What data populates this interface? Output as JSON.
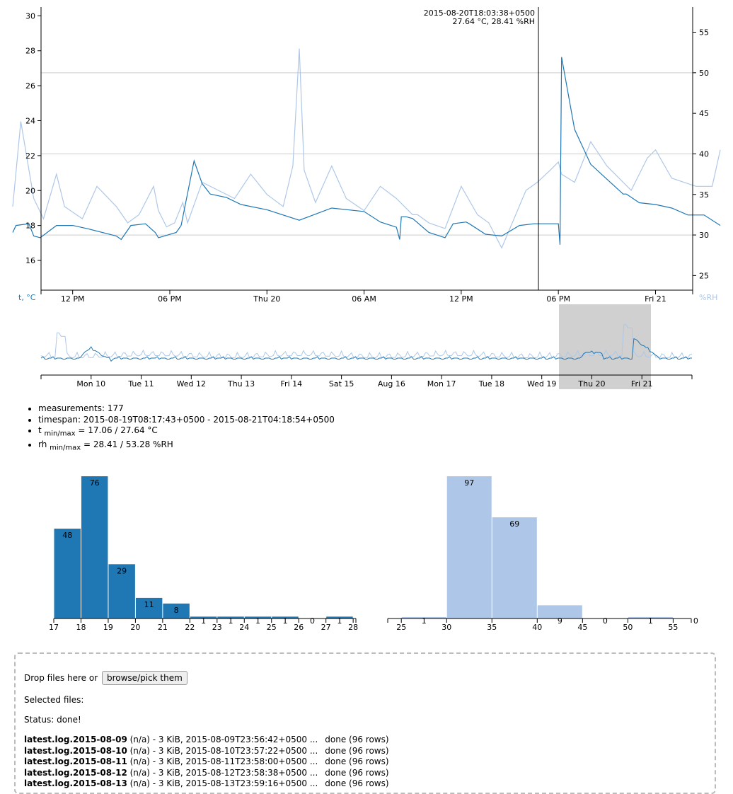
{
  "main_chart": {
    "tooltip": {
      "time": "2015-08-20T18:03:38+0500",
      "values": "27.64 °C, 28.41 %RH"
    },
    "y_left_label": "t, °C",
    "y_right_label": "%RH",
    "y_left_ticks": [
      "16",
      "18",
      "20",
      "22",
      "24",
      "26",
      "28",
      "30"
    ],
    "y_right_ticks": [
      "25",
      "30",
      "35",
      "40",
      "45",
      "50",
      "55"
    ],
    "x_ticks": [
      "12 PM",
      "06 PM",
      "Thu 20",
      "06 AM",
      "12 PM",
      "06 PM",
      "Fri 21"
    ]
  },
  "brush_chart": {
    "x_ticks": [
      "Mon 10",
      "Tue 11",
      "Wed 12",
      "Thu 13",
      "Fri 14",
      "Sat 15",
      "Aug 16",
      "Mon 17",
      "Tue 18",
      "Wed 19",
      "Thu 20",
      "Fri 21"
    ]
  },
  "stats": {
    "measurements": "measurements: 177",
    "timespan": "timespan: 2015-08-19T08:17:43+0500 - 2015-08-21T04:18:54+0500",
    "t_prefix": "t ",
    "t_sub": "min/max",
    "t_value": " = 17.06 / 27.64 °C",
    "rh_prefix": "rh ",
    "rh_sub": "min/max",
    "rh_value": " = 28.41 / 53.28 %RH"
  },
  "chart_data": [
    {
      "type": "line",
      "x_label": "",
      "y_label": "t, °C",
      "y2_label": "%RH",
      "ylim": [
        14.3,
        30.5
      ],
      "y2lim": [
        23.2,
        58.1
      ],
      "x_range": [
        "2015-08-19T08:17:43+0500",
        "2015-08-21T04:18:54+0500"
      ],
      "colors": {
        "t": "#1f77b4",
        "rh": "#aec7e8"
      },
      "grid": "horizontal",
      "series": [
        {
          "name": "t, °C",
          "axis": "left",
          "t": [
            8.3,
            8.5,
            9.3,
            9.6,
            10.0,
            11.0,
            12.0,
            13.0,
            14.7,
            15.0,
            15.6,
            16.5,
            17.1,
            17.3,
            18.4,
            18.7,
            19.5,
            20.0,
            20.5,
            21.5,
            22.4,
            24.0,
            26.0,
            28.0,
            30.0,
            31.0,
            32.0,
            32.2,
            32.3,
            32.6,
            33.0,
            34.0,
            35.0,
            35.5,
            36.3,
            36.5,
            37.5,
            38.5,
            39.6,
            40.5,
            42.0,
            42.1,
            42.2,
            43.0,
            44.0,
            46.0,
            46.2,
            47.0,
            48.0,
            49.0,
            50.0,
            51.0,
            52.0
          ],
          "y": [
            17.6,
            18.0,
            18.1,
            17.4,
            17.3,
            18.0,
            18.0,
            17.8,
            17.4,
            17.2,
            18.0,
            18.1,
            17.6,
            17.3,
            17.6,
            18.0,
            21.7,
            20.4,
            19.8,
            19.6,
            19.2,
            18.9,
            18.3,
            19.0,
            18.8,
            18.2,
            17.9,
            17.2,
            18.5,
            18.5,
            18.4,
            17.6,
            17.3,
            18.1,
            18.2,
            18.1,
            17.5,
            17.4,
            18.0,
            18.1,
            18.1,
            16.9,
            27.64,
            23.5,
            21.5,
            19.8,
            19.8,
            19.3,
            19.2,
            19.0,
            18.6,
            18.6,
            18.0
          ]
        },
        {
          "name": "%RH",
          "axis": "right",
          "t": [
            8.3,
            8.8,
            9.6,
            10.2,
            11.0,
            11.5,
            12.6,
            13.5,
            14.7,
            15.4,
            16.1,
            17.0,
            17.3,
            17.8,
            18.3,
            18.8,
            19.1,
            20.0,
            21.0,
            22.0,
            23.0,
            24.0,
            25.0,
            25.6,
            26.0,
            26.3,
            27.0,
            28.0,
            28.9,
            30.0,
            31.0,
            32.0,
            33.0,
            33.3,
            34.0,
            35.0,
            36.0,
            37.0,
            37.7,
            38.5,
            40.0,
            40.7,
            41.5,
            42.0,
            42.2,
            43.0,
            44.0,
            45.0,
            46.5,
            47.5,
            48.0,
            49.0,
            50.5,
            51.5,
            52.0
          ],
          "y": [
            33.5,
            44.0,
            34.5,
            32.0,
            37.5,
            33.5,
            32.0,
            36.0,
            33.5,
            31.5,
            32.5,
            36.0,
            33.0,
            31.0,
            31.5,
            34.0,
            31.5,
            36.5,
            35.5,
            34.5,
            37.5,
            35.0,
            33.5,
            38.5,
            53.0,
            38.0,
            34.0,
            38.5,
            34.5,
            33.0,
            36.0,
            34.5,
            32.5,
            32.5,
            31.5,
            30.8,
            36.0,
            32.5,
            31.5,
            28.41,
            35.5,
            36.5,
            38.0,
            39.0,
            37.5,
            36.5,
            41.5,
            38.5,
            35.5,
            39.5,
            40.5,
            37.0,
            36.0,
            36.0,
            40.5
          ]
        }
      ]
    },
    {
      "type": "histogram",
      "title": "",
      "unit": "°C",
      "color": "#1f77b4",
      "bins": [
        [
          17,
          18,
          48
        ],
        [
          18,
          19,
          76
        ],
        [
          19,
          20,
          29
        ],
        [
          20,
          21,
          11
        ],
        [
          21,
          22,
          8
        ],
        [
          22,
          23,
          1
        ],
        [
          23,
          24,
          1
        ],
        [
          24,
          25,
          1
        ],
        [
          25,
          26,
          1
        ],
        [
          26,
          27,
          0
        ],
        [
          27,
          28,
          1
        ]
      ],
      "x_ticks": [
        "17",
        "18",
        "19",
        "20",
        "21",
        "22",
        "23",
        "24",
        "25",
        "26",
        "27",
        "28"
      ]
    },
    {
      "type": "histogram",
      "title": "",
      "unit": "%RH",
      "color": "#aec7e8",
      "bins": [
        [
          25,
          30,
          1
        ],
        [
          30,
          35,
          97
        ],
        [
          35,
          40,
          69
        ],
        [
          40,
          45,
          9
        ],
        [
          45,
          50,
          0
        ],
        [
          50,
          55,
          1
        ],
        [
          55,
          60,
          0
        ]
      ],
      "x_ticks": [
        "25",
        "30",
        "35",
        "40",
        "45",
        "50",
        "55"
      ]
    }
  ],
  "dropzone": {
    "drop_text": "Drop files here or",
    "browse_label": "browse/pick them",
    "selected_label": "Selected files:",
    "status": "Status: done!"
  },
  "files": [
    {
      "name": "latest.log.2015-08-09",
      "info": " (n/a) - 3 KiB, 2015-08-09T23:56:42+0500 ...",
      "status": "done (96 rows)"
    },
    {
      "name": "latest.log.2015-08-10",
      "info": " (n/a) - 3 KiB, 2015-08-10T23:57:22+0500 ...",
      "status": "done (96 rows)"
    },
    {
      "name": "latest.log.2015-08-11",
      "info": " (n/a) - 3 KiB, 2015-08-11T23:58:00+0500 ...",
      "status": "done (96 rows)"
    },
    {
      "name": "latest.log.2015-08-12",
      "info": " (n/a) - 3 KiB, 2015-08-12T23:58:38+0500 ...",
      "status": "done (96 rows)"
    },
    {
      "name": "latest.log.2015-08-13",
      "info": " (n/a) - 3 KiB, 2015-08-13T23:59:16+0500 ...",
      "status": "done (96 rows)"
    }
  ]
}
